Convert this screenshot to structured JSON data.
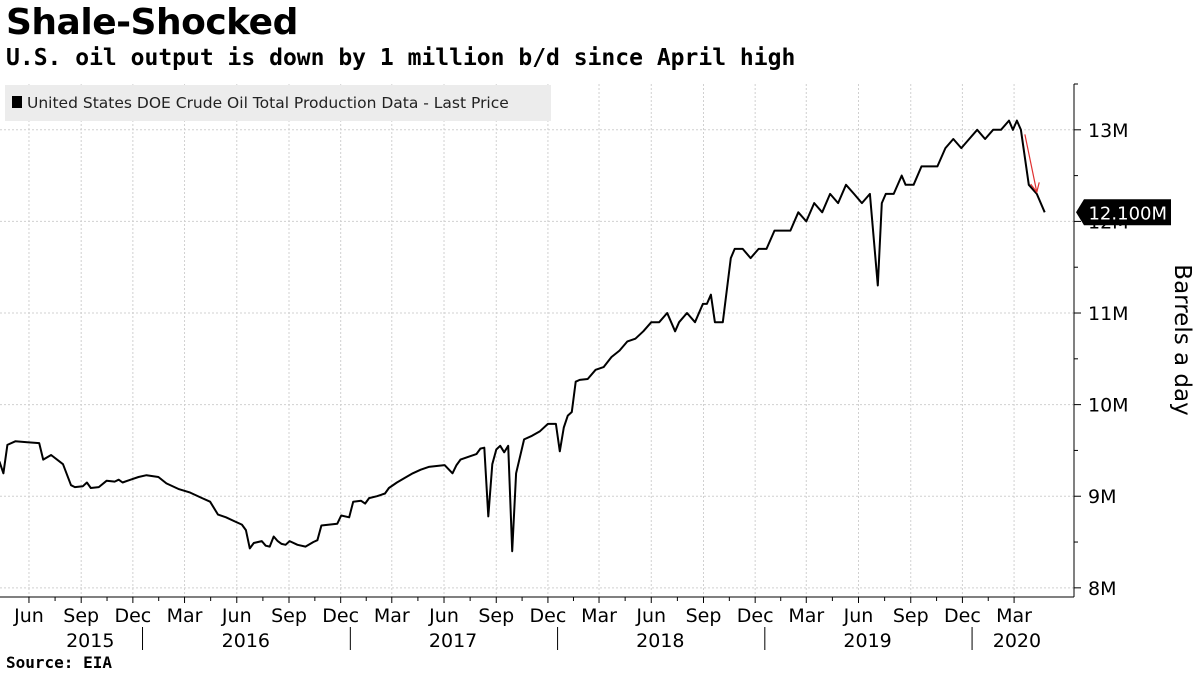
{
  "header": {
    "title": "Shale-Shocked",
    "subtitle": "U.S. oil output is down by 1 million b/d since April high"
  },
  "footer": {
    "source": "Source: EIA"
  },
  "chart_data": {
    "type": "line",
    "title": "Shale-Shocked",
    "subtitle": "U.S. oil output is down by 1 million b/d since April high",
    "legend": [
      "United States DOE Crude Oil Total Production Data - Last Price"
    ],
    "legend_position": "top-left",
    "ylabel": "Barrels a day",
    "ylim": [
      7900000,
      13500000
    ],
    "yticks": [
      8000000,
      9000000,
      10000000,
      11000000,
      12000000,
      13000000
    ],
    "ytick_labels": [
      "8M",
      "9M",
      "10M",
      "11M",
      "12M",
      "13M"
    ],
    "y_axis_side": "right",
    "x_start": "2015-04-25",
    "x_end": "2020-06-25",
    "month_ticks": [
      {
        "label": "Jun",
        "date": "2015-06-15"
      },
      {
        "label": "Sep",
        "date": "2015-09-15"
      },
      {
        "label": "Dec",
        "date": "2015-12-15"
      },
      {
        "label": "Mar",
        "date": "2016-03-15"
      },
      {
        "label": "Jun",
        "date": "2016-06-15"
      },
      {
        "label": "Sep",
        "date": "2016-09-15"
      },
      {
        "label": "Dec",
        "date": "2016-12-15"
      },
      {
        "label": "Mar",
        "date": "2017-03-15"
      },
      {
        "label": "Jun",
        "date": "2017-06-15"
      },
      {
        "label": "Sep",
        "date": "2017-09-15"
      },
      {
        "label": "Dec",
        "date": "2017-12-15"
      },
      {
        "label": "Mar",
        "date": "2018-03-15"
      },
      {
        "label": "Jun",
        "date": "2018-06-15"
      },
      {
        "label": "Sep",
        "date": "2018-09-15"
      },
      {
        "label": "Dec",
        "date": "2018-12-15"
      },
      {
        "label": "Mar",
        "date": "2019-03-15"
      },
      {
        "label": "Jun",
        "date": "2019-06-15"
      },
      {
        "label": "Sep",
        "date": "2019-09-15"
      },
      {
        "label": "Dec",
        "date": "2019-12-15"
      },
      {
        "label": "Mar",
        "date": "2020-03-15"
      }
    ],
    "years": [
      {
        "label": "2015",
        "date": "2015-10-01"
      },
      {
        "label": "2016",
        "date": "2016-07-01"
      },
      {
        "label": "2017",
        "date": "2017-07-01"
      },
      {
        "label": "2018",
        "date": "2018-07-01"
      },
      {
        "label": "2019",
        "date": "2019-07-01"
      },
      {
        "label": "2020",
        "date": "2020-03-20"
      }
    ],
    "year_dividers": [
      "2016-01-01",
      "2017-01-01",
      "2018-01-01",
      "2019-01-01",
      "2020-01-01"
    ],
    "last_value_label": "12.100M",
    "series": [
      {
        "name": "United States DOE Crude Oil Total Production Data - Last Price",
        "points": [
          [
            "2015-04-24",
            9380000
          ],
          [
            "2015-05-01",
            9250000
          ],
          [
            "2015-05-08",
            9560000
          ],
          [
            "2015-05-22",
            9600000
          ],
          [
            "2015-06-12",
            9590000
          ],
          [
            "2015-07-03",
            9580000
          ],
          [
            "2015-07-10",
            9400000
          ],
          [
            "2015-07-24",
            9450000
          ],
          [
            "2015-08-14",
            9350000
          ],
          [
            "2015-08-28",
            9120000
          ],
          [
            "2015-09-04",
            9100000
          ],
          [
            "2015-09-18",
            9110000
          ],
          [
            "2015-09-25",
            9150000
          ],
          [
            "2015-10-02",
            9090000
          ],
          [
            "2015-10-16",
            9100000
          ],
          [
            "2015-10-30",
            9170000
          ],
          [
            "2015-11-13",
            9160000
          ],
          [
            "2015-11-20",
            9180000
          ],
          [
            "2015-11-27",
            9150000
          ],
          [
            "2015-12-11",
            9180000
          ],
          [
            "2015-12-25",
            9210000
          ],
          [
            "2016-01-08",
            9230000
          ],
          [
            "2016-01-29",
            9210000
          ],
          [
            "2016-02-12",
            9140000
          ],
          [
            "2016-03-04",
            9080000
          ],
          [
            "2016-03-25",
            9040000
          ],
          [
            "2016-04-15",
            8980000
          ],
          [
            "2016-04-29",
            8940000
          ],
          [
            "2016-05-13",
            8800000
          ],
          [
            "2016-05-27",
            8770000
          ],
          [
            "2016-06-10",
            8730000
          ],
          [
            "2016-06-24",
            8690000
          ],
          [
            "2016-07-01",
            8630000
          ],
          [
            "2016-07-08",
            8430000
          ],
          [
            "2016-07-15",
            8490000
          ],
          [
            "2016-07-29",
            8510000
          ],
          [
            "2016-08-05",
            8460000
          ],
          [
            "2016-08-12",
            8450000
          ],
          [
            "2016-08-19",
            8560000
          ],
          [
            "2016-08-26",
            8510000
          ],
          [
            "2016-09-02",
            8480000
          ],
          [
            "2016-09-09",
            8470000
          ],
          [
            "2016-09-16",
            8510000
          ],
          [
            "2016-09-30",
            8470000
          ],
          [
            "2016-10-14",
            8450000
          ],
          [
            "2016-10-28",
            8500000
          ],
          [
            "2016-11-04",
            8520000
          ],
          [
            "2016-11-11",
            8680000
          ],
          [
            "2016-11-25",
            8690000
          ],
          [
            "2016-12-09",
            8700000
          ],
          [
            "2016-12-16",
            8790000
          ],
          [
            "2016-12-30",
            8770000
          ],
          [
            "2017-01-06",
            8940000
          ],
          [
            "2017-01-20",
            8950000
          ],
          [
            "2017-01-27",
            8920000
          ],
          [
            "2017-02-03",
            8980000
          ],
          [
            "2017-02-17",
            9000000
          ],
          [
            "2017-03-03",
            9030000
          ],
          [
            "2017-03-10",
            9090000
          ],
          [
            "2017-03-24",
            9150000
          ],
          [
            "2017-04-07",
            9200000
          ],
          [
            "2017-04-21",
            9250000
          ],
          [
            "2017-05-05",
            9290000
          ],
          [
            "2017-05-19",
            9320000
          ],
          [
            "2017-06-02",
            9330000
          ],
          [
            "2017-06-16",
            9340000
          ],
          [
            "2017-06-30",
            9250000
          ],
          [
            "2017-07-07",
            9340000
          ],
          [
            "2017-07-14",
            9400000
          ],
          [
            "2017-07-28",
            9430000
          ],
          [
            "2017-08-11",
            9460000
          ],
          [
            "2017-08-18",
            9520000
          ],
          [
            "2017-08-25",
            9530000
          ],
          [
            "2017-09-01",
            8780000
          ],
          [
            "2017-09-08",
            9350000
          ],
          [
            "2017-09-15",
            9510000
          ],
          [
            "2017-09-22",
            9550000
          ],
          [
            "2017-09-29",
            9480000
          ],
          [
            "2017-10-06",
            9550000
          ],
          [
            "2017-10-13",
            8400000
          ],
          [
            "2017-10-20",
            9250000
          ],
          [
            "2017-11-03",
            9620000
          ],
          [
            "2017-11-17",
            9660000
          ],
          [
            "2017-12-01",
            9710000
          ],
          [
            "2017-12-15",
            9790000
          ],
          [
            "2017-12-29",
            9790000
          ],
          [
            "2018-01-05",
            9490000
          ],
          [
            "2018-01-12",
            9750000
          ],
          [
            "2018-01-19",
            9880000
          ],
          [
            "2018-01-26",
            9920000
          ],
          [
            "2018-02-02",
            10250000
          ],
          [
            "2018-02-09",
            10270000
          ],
          [
            "2018-02-23",
            10280000
          ],
          [
            "2018-03-09",
            10380000
          ],
          [
            "2018-03-23",
            10410000
          ],
          [
            "2018-04-06",
            10520000
          ],
          [
            "2018-04-20",
            10590000
          ],
          [
            "2018-05-04",
            10690000
          ],
          [
            "2018-05-18",
            10720000
          ],
          [
            "2018-06-01",
            10800000
          ],
          [
            "2018-06-15",
            10900000
          ],
          [
            "2018-06-29",
            10900000
          ],
          [
            "2018-07-13",
            11000000
          ],
          [
            "2018-07-27",
            10800000
          ],
          [
            "2018-08-03",
            10900000
          ],
          [
            "2018-08-17",
            11000000
          ],
          [
            "2018-08-31",
            10900000
          ],
          [
            "2018-09-14",
            11100000
          ],
          [
            "2018-09-21",
            11100000
          ],
          [
            "2018-09-28",
            11200000
          ],
          [
            "2018-10-05",
            10900000
          ],
          [
            "2018-10-19",
            10900000
          ],
          [
            "2018-11-02",
            11600000
          ],
          [
            "2018-11-09",
            11700000
          ],
          [
            "2018-11-23",
            11700000
          ],
          [
            "2018-12-07",
            11600000
          ],
          [
            "2018-12-21",
            11700000
          ],
          [
            "2019-01-04",
            11700000
          ],
          [
            "2019-01-18",
            11900000
          ],
          [
            "2019-02-01",
            11900000
          ],
          [
            "2019-02-15",
            11900000
          ],
          [
            "2019-03-01",
            12100000
          ],
          [
            "2019-03-15",
            12000000
          ],
          [
            "2019-03-29",
            12200000
          ],
          [
            "2019-04-12",
            12100000
          ],
          [
            "2019-04-26",
            12300000
          ],
          [
            "2019-05-10",
            12200000
          ],
          [
            "2019-05-24",
            12400000
          ],
          [
            "2019-06-07",
            12300000
          ],
          [
            "2019-06-21",
            12200000
          ],
          [
            "2019-07-05",
            12300000
          ],
          [
            "2019-07-19",
            11300000
          ],
          [
            "2019-07-26",
            12200000
          ],
          [
            "2019-08-02",
            12300000
          ],
          [
            "2019-08-16",
            12300000
          ],
          [
            "2019-08-30",
            12500000
          ],
          [
            "2019-09-06",
            12400000
          ],
          [
            "2019-09-20",
            12400000
          ],
          [
            "2019-10-04",
            12600000
          ],
          [
            "2019-10-18",
            12600000
          ],
          [
            "2019-11-01",
            12600000
          ],
          [
            "2019-11-15",
            12800000
          ],
          [
            "2019-11-29",
            12900000
          ],
          [
            "2019-12-13",
            12800000
          ],
          [
            "2019-12-27",
            12900000
          ],
          [
            "2020-01-10",
            13000000
          ],
          [
            "2020-01-24",
            12900000
          ],
          [
            "2020-02-07",
            13000000
          ],
          [
            "2020-02-21",
            13000000
          ],
          [
            "2020-03-06",
            13100000
          ],
          [
            "2020-03-13",
            13000000
          ],
          [
            "2020-03-20",
            13100000
          ],
          [
            "2020-03-27",
            13000000
          ],
          [
            "2020-04-10",
            12400000
          ],
          [
            "2020-04-24",
            12300000
          ],
          [
            "2020-05-08",
            12100000
          ]
        ]
      }
    ],
    "annotations": [
      {
        "type": "arrow",
        "color": "#e03030",
        "from": [
          "2020-04-03",
          12950000
        ],
        "to": [
          "2020-04-24",
          12320000
        ]
      }
    ]
  }
}
